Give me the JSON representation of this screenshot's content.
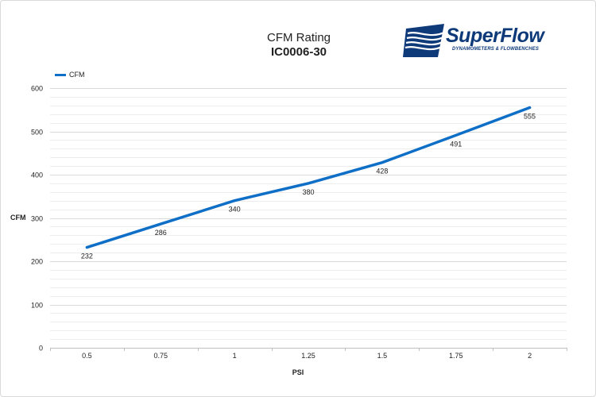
{
  "title_line1": "CFM Rating",
  "title_line2": "IC0006-30",
  "logo": {
    "wordmark": "SuperFlow",
    "tagline": "DYNAMOMETERS & FLOWBENCHES",
    "color": "#0e3a7a"
  },
  "chart_data": {
    "type": "line",
    "title": "CFM Rating",
    "subtitle": "IC0006-30",
    "xlabel": "PSI",
    "ylabel": "CFM",
    "categories": [
      "0.5",
      "0.75",
      "1",
      "1.25",
      "1.5",
      "1.75",
      "2"
    ],
    "series": [
      {
        "name": "CFM",
        "color": "#0f6fc6",
        "values": [
          232,
          286,
          340,
          380,
          428,
          491,
          555
        ]
      }
    ],
    "ylim": [
      0,
      600
    ],
    "yticks": [
      0,
      100,
      200,
      300,
      400,
      500,
      600
    ],
    "minor_grid_step": 20,
    "grid": true,
    "data_labels": true,
    "legend_position": "top-left"
  }
}
